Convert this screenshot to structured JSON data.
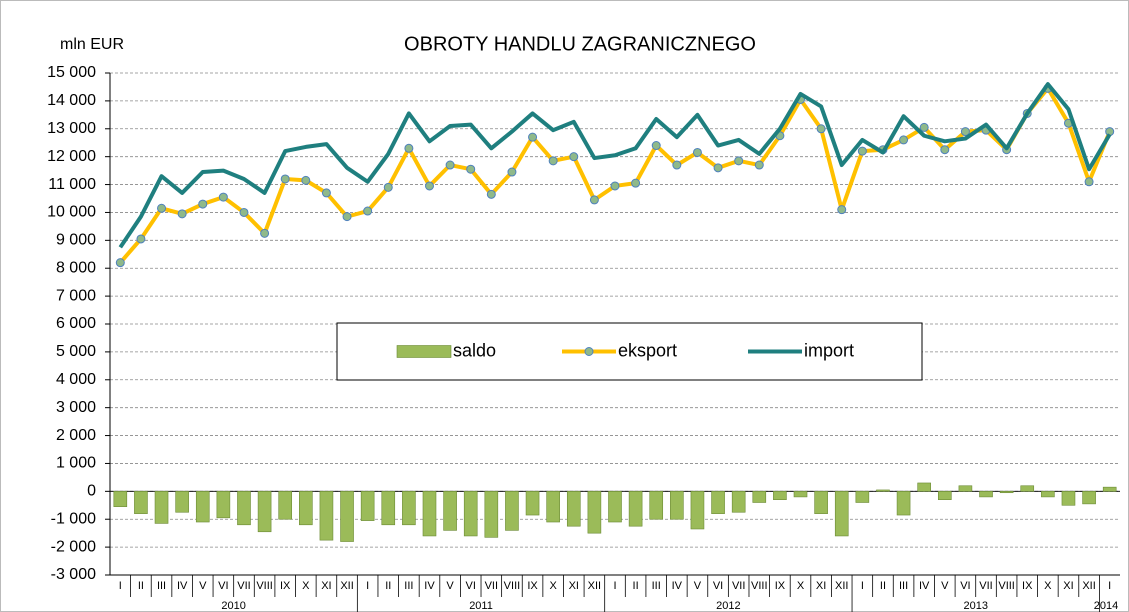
{
  "chart_data": {
    "type": "bar-line",
    "title": "OBROTY HANDLU ZAGRANICZNEGO",
    "y_axis_label": "mln EUR",
    "categories": [
      "I",
      "II",
      "III",
      "IV",
      "V",
      "VI",
      "VII",
      "VIII",
      "IX",
      "X",
      "XI",
      "XII",
      "I",
      "II",
      "III",
      "IV",
      "V",
      "VI",
      "VII",
      "VIII",
      "IX",
      "X",
      "XI",
      "XII",
      "I",
      "II",
      "III",
      "IV",
      "V",
      "VI",
      "VII",
      "VIII",
      "IX",
      "X",
      "XI",
      "XII",
      "I",
      "II",
      "III",
      "IV",
      "V",
      "VI",
      "VII",
      "VIII",
      "IX",
      "X",
      "XI",
      "XII",
      "I"
    ],
    "years": [
      "2010",
      "2011",
      "2012",
      "2013",
      "2014"
    ],
    "series": [
      {
        "name": "saldo",
        "kind": "bar",
        "color": "#9bbb59",
        "values": [
          -550,
          -800,
          -1150,
          -750,
          -1100,
          -950,
          -1200,
          -1450,
          -1000,
          -1200,
          -1750,
          -1800,
          -1050,
          -1200,
          -1200,
          -1600,
          -1400,
          -1600,
          -1650,
          -1400,
          -850,
          -1100,
          -1250,
          -1500,
          -1100,
          -1250,
          -1000,
          -1000,
          -1350,
          -800,
          -750,
          -400,
          -300,
          -200,
          -800,
          -1600,
          -400,
          50,
          -850,
          300,
          -300,
          200,
          -200,
          -50,
          200,
          -200,
          -500,
          -450,
          150
        ]
      },
      {
        "name": "eksport",
        "kind": "line-marker",
        "color": "#ffc000",
        "values": [
          8200,
          9050,
          10150,
          9950,
          10300,
          10550,
          10000,
          9250,
          11200,
          11150,
          10700,
          9850,
          10050,
          10900,
          12300,
          10950,
          11700,
          11550,
          10650,
          11450,
          12700,
          11850,
          12000,
          10450,
          10950,
          11050,
          12400,
          11700,
          12150,
          11600,
          11850,
          11700,
          12750,
          14050,
          13000,
          10100,
          12200,
          12250,
          12600,
          13050,
          12250,
          12900,
          12950,
          12250,
          13550,
          14450,
          13200,
          11100,
          12900
        ]
      },
      {
        "name": "import",
        "kind": "line",
        "color": "#1f7f7f",
        "values": [
          8750,
          9850,
          11300,
          10700,
          11450,
          11500,
          11200,
          10700,
          12200,
          12350,
          12450,
          11600,
          11100,
          12100,
          13550,
          12550,
          13100,
          13150,
          12300,
          12900,
          13550,
          12950,
          13250,
          11950,
          12050,
          12300,
          13350,
          12700,
          13500,
          12400,
          12600,
          12100,
          13000,
          14250,
          13800,
          11700,
          12600,
          12150,
          13450,
          12750,
          12550,
          12650,
          13150,
          12300,
          13550,
          14600,
          13700,
          11550,
          12800
        ]
      }
    ],
    "ylim": [
      -3000,
      15000
    ],
    "yticks": [
      {
        "value": -3000,
        "label": "-3 000"
      },
      {
        "value": -2000,
        "label": "-2 000"
      },
      {
        "value": -1000,
        "label": "-1 000"
      },
      0,
      {
        "value": 1000,
        "label": "1 000"
      },
      {
        "value": 2000,
        "label": "2 000"
      },
      {
        "value": 3000,
        "label": "3 000"
      },
      {
        "value": 4000,
        "label": "4 000"
      },
      {
        "value": 5000,
        "label": "5 000"
      },
      {
        "value": 6000,
        "label": "6 000"
      },
      {
        "value": 7000,
        "label": "7 000"
      },
      {
        "value": 8000,
        "label": "8 000"
      },
      {
        "value": 9000,
        "label": "9 000"
      },
      {
        "value": 10000,
        "label": "10 000"
      },
      {
        "value": 11000,
        "label": "11 000"
      },
      {
        "value": 12000,
        "label": "12 000"
      },
      {
        "value": 13000,
        "label": "13 000"
      },
      {
        "value": 14000,
        "label": "14 000"
      },
      {
        "value": 15000,
        "label": "15 000"
      }
    ],
    "grid": true,
    "legend": "center"
  }
}
